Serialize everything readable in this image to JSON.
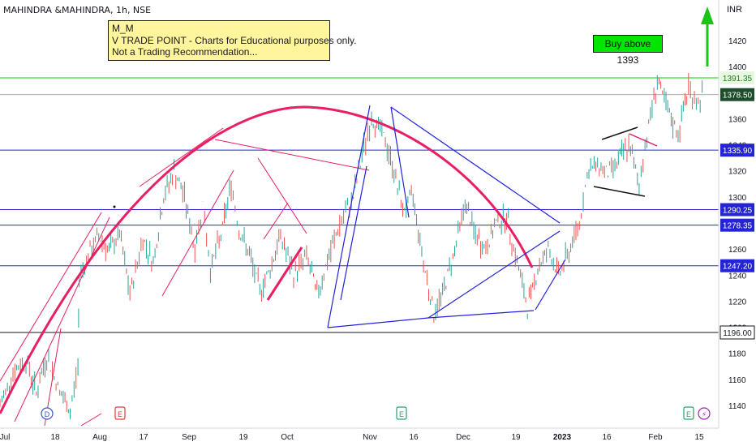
{
  "header": {
    "symbol_title": "MAHINDRA &MAHINDRA, 1h, NSE",
    "currency": "INR"
  },
  "notes": {
    "line1": "M_M",
    "line2": "V TRADE POINT - Charts for Educational purposes only.",
    "line3": "Not a Trading Recommendation..."
  },
  "callout": {
    "text": "Buy above 1393"
  },
  "chart_data": {
    "type": "line",
    "title": "",
    "xlabel": "",
    "ylabel": "",
    "x_ticks": [
      "Jul",
      "18",
      "Aug",
      "17",
      "Sep",
      "19",
      "Oct",
      "Nov",
      "16",
      "Dec",
      "19",
      "2023",
      "16",
      "Feb",
      "15"
    ],
    "y_ticks": [
      1140,
      1160,
      1180,
      1200,
      1220,
      1240,
      1260,
      1280,
      1300,
      1320,
      1340,
      1360,
      1380,
      1400,
      1420
    ],
    "ylim": [
      1130,
      1440
    ],
    "levels": [
      {
        "value": 1391.35,
        "label": "1391.35",
        "color": "#00d600"
      },
      {
        "value": 1378.5,
        "label": "1378.50",
        "color": "#9e9e9e",
        "current_price": true
      },
      {
        "value": 1335.9,
        "label": "1335.90",
        "color": "#2424d6"
      },
      {
        "value": 1290.25,
        "label": "1290.25",
        "color": "#2424d6"
      },
      {
        "value": 1278.35,
        "label": "1278.35",
        "color": "#2424d6"
      },
      {
        "value": 1247.2,
        "label": "1247.20",
        "color": "#2424d6"
      },
      {
        "value": 1196.0,
        "label": "1196.00",
        "color": "#131722"
      }
    ],
    "price_path": [
      [
        0.0,
        1140
      ],
      [
        0.5,
        1165
      ],
      [
        1.0,
        1175
      ],
      [
        1.4,
        1150
      ],
      [
        1.8,
        1178
      ],
      [
        2.3,
        1150
      ],
      [
        2.7,
        1135
      ],
      [
        3.0,
        1170
      ],
      [
        3.05,
        1240
      ],
      [
        3.4,
        1255
      ],
      [
        3.8,
        1270
      ],
      [
        4.2,
        1258
      ],
      [
        4.6,
        1272
      ],
      [
        5.0,
        1225
      ],
      [
        5.5,
        1268
      ],
      [
        5.9,
        1250
      ],
      [
        6.3,
        1300
      ],
      [
        6.7,
        1320
      ],
      [
        7.1,
        1300
      ],
      [
        7.5,
        1260
      ],
      [
        7.8,
        1295
      ],
      [
        8.1,
        1245
      ],
      [
        8.5,
        1270
      ],
      [
        8.9,
        1310
      ],
      [
        9.2,
        1275
      ],
      [
        9.6,
        1255
      ],
      [
        10.0,
        1228
      ],
      [
        10.4,
        1245
      ],
      [
        10.8,
        1270
      ],
      [
        11.3,
        1240
      ],
      [
        11.8,
        1255
      ],
      [
        12.2,
        1225
      ],
      [
        12.6,
        1250
      ],
      [
        13.0,
        1275
      ],
      [
        13.6,
        1300
      ],
      [
        14.0,
        1338
      ],
      [
        14.3,
        1360
      ],
      [
        14.7,
        1350
      ],
      [
        15.1,
        1325
      ],
      [
        15.5,
        1290
      ],
      [
        15.9,
        1300
      ],
      [
        16.3,
        1250
      ],
      [
        16.7,
        1210
      ],
      [
        17.1,
        1230
      ],
      [
        17.5,
        1260
      ],
      [
        17.9,
        1295
      ],
      [
        18.3,
        1270
      ],
      [
        18.7,
        1260
      ],
      [
        19.1,
        1280
      ],
      [
        19.5,
        1285
      ],
      [
        19.9,
        1250
      ],
      [
        20.3,
        1215
      ],
      [
        20.7,
        1245
      ],
      [
        21.1,
        1260
      ],
      [
        21.5,
        1240
      ],
      [
        21.9,
        1258
      ],
      [
        22.3,
        1280
      ],
      [
        22.6,
        1318
      ],
      [
        23.0,
        1325
      ],
      [
        23.4,
        1318
      ],
      [
        23.8,
        1328
      ],
      [
        24.2,
        1340
      ],
      [
        24.6,
        1310
      ],
      [
        24.9,
        1348
      ],
      [
        25.3,
        1390
      ],
      [
        25.7,
        1365
      ],
      [
        26.1,
        1348
      ],
      [
        26.5,
        1385
      ],
      [
        26.8,
        1372
      ],
      [
        27.1,
        1380
      ]
    ]
  },
  "badges": {
    "dividend": "D",
    "earnings": "E",
    "split": "⚡"
  },
  "colors": {
    "accent_red": "#e91e63",
    "trend_blue": "#2222dd",
    "support_green": "#00d600",
    "up_arrow": "#18c418"
  }
}
